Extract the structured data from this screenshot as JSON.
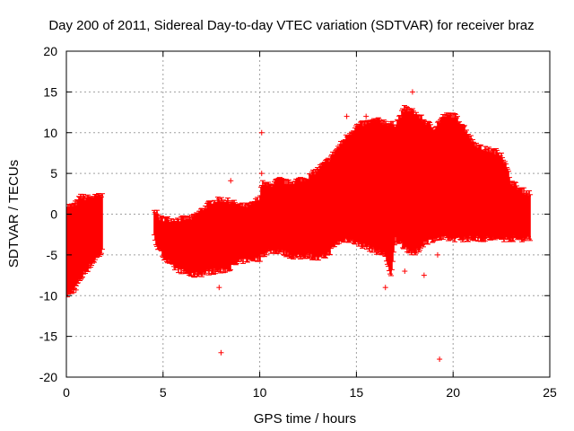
{
  "chart_data": {
    "type": "scatter",
    "title": "Day 200 of 2011, Sidereal Day-to-day VTEC variation (SDTVAR) for receiver braz",
    "xlabel": "GPS time / hours",
    "ylabel": "SDTVAR / TECUs",
    "xlim": [
      0,
      25
    ],
    "ylim": [
      -20,
      20
    ],
    "xticks": [
      0,
      5,
      10,
      15,
      20,
      25
    ],
    "yticks": [
      -20,
      -15,
      -10,
      -5,
      0,
      5,
      10,
      15,
      20
    ],
    "grid": true,
    "marker": "+",
    "color": "#ff0000",
    "series": [
      {
        "name": "SDTVAR",
        "envelope": [
          {
            "x": 0.0,
            "lo": -10.0,
            "hi": 1.0
          },
          {
            "x": 0.3,
            "lo": -9.5,
            "hi": 1.0
          },
          {
            "x": 0.6,
            "lo": -8.5,
            "hi": 1.5
          },
          {
            "x": 0.7,
            "lo": -8.0,
            "hi": 2.2
          },
          {
            "x": 1.0,
            "lo": -7.0,
            "hi": 2.0
          },
          {
            "x": 1.5,
            "lo": -5.5,
            "hi": 2.1
          },
          {
            "x": 1.9,
            "lo": -4.5,
            "hi": 2.3
          },
          {
            "x": 4.5,
            "lo": -2.5,
            "hi": 1.0
          },
          {
            "x": 4.8,
            "lo": -4.5,
            "hi": -0.5
          },
          {
            "x": 5.5,
            "lo": -6.5,
            "hi": -0.7
          },
          {
            "x": 6.5,
            "lo": -7.5,
            "hi": -0.5
          },
          {
            "x": 7.0,
            "lo": -7.3,
            "hi": 0.5
          },
          {
            "x": 7.5,
            "lo": -7.0,
            "hi": 1.5
          },
          {
            "x": 8.0,
            "lo": -7.0,
            "hi": 1.8
          },
          {
            "x": 8.5,
            "lo": -6.5,
            "hi": 1.5
          },
          {
            "x": 9.0,
            "lo": -5.8,
            "hi": 1.0
          },
          {
            "x": 9.5,
            "lo": -5.5,
            "hi": 1.0
          },
          {
            "x": 10.0,
            "lo": -5.5,
            "hi": 2.0
          },
          {
            "x": 10.1,
            "lo": -5.0,
            "hi": 3.8
          },
          {
            "x": 10.5,
            "lo": -4.5,
            "hi": 3.5
          },
          {
            "x": 11.0,
            "lo": -4.5,
            "hi": 4.2
          },
          {
            "x": 11.5,
            "lo": -5.0,
            "hi": 3.8
          },
          {
            "x": 12.0,
            "lo": -5.3,
            "hi": 4.2
          },
          {
            "x": 12.5,
            "lo": -5.0,
            "hi": 4.5
          },
          {
            "x": 13.0,
            "lo": -5.5,
            "hi": 5.5
          },
          {
            "x": 13.5,
            "lo": -5.0,
            "hi": 6.5
          },
          {
            "x": 14.0,
            "lo": -3.5,
            "hi": 8.0
          },
          {
            "x": 14.5,
            "lo": -3.0,
            "hi": 9.5
          },
          {
            "x": 15.0,
            "lo": -3.5,
            "hi": 10.8
          },
          {
            "x": 15.5,
            "lo": -4.0,
            "hi": 11.2
          },
          {
            "x": 16.0,
            "lo": -4.5,
            "hi": 11.5
          },
          {
            "x": 16.5,
            "lo": -5.0,
            "hi": 11.3
          },
          {
            "x": 16.8,
            "lo": -8.0,
            "hi": 11.0
          },
          {
            "x": 17.0,
            "lo": -3.0,
            "hi": 11.0
          },
          {
            "x": 17.5,
            "lo": -4.0,
            "hi": 13.0
          },
          {
            "x": 18.0,
            "lo": -5.0,
            "hi": 12.5
          },
          {
            "x": 18.5,
            "lo": -3.5,
            "hi": 11.5
          },
          {
            "x": 19.0,
            "lo": -3.0,
            "hi": 10.5
          },
          {
            "x": 19.5,
            "lo": -3.0,
            "hi": 12.0
          },
          {
            "x": 20.0,
            "lo": -3.0,
            "hi": 12.2
          },
          {
            "x": 20.5,
            "lo": -3.0,
            "hi": 11.0
          },
          {
            "x": 21.0,
            "lo": -3.0,
            "hi": 9.0
          },
          {
            "x": 21.5,
            "lo": -3.0,
            "hi": 8.0
          },
          {
            "x": 22.0,
            "lo": -3.0,
            "hi": 7.8
          },
          {
            "x": 22.5,
            "lo": -3.0,
            "hi": 7.5
          },
          {
            "x": 23.0,
            "lo": -3.0,
            "hi": 4.0
          },
          {
            "x": 23.5,
            "lo": -3.0,
            "hi": 3.0
          },
          {
            "x": 24.0,
            "lo": -3.0,
            "hi": 2.5
          }
        ],
        "segments": [
          {
            "start": 0.0,
            "end": 1.9
          },
          {
            "start": 4.5,
            "end": 24.0
          }
        ],
        "outliers": [
          {
            "x": 8.0,
            "y": -17.0
          },
          {
            "x": 8.5,
            "y": 4.1
          },
          {
            "x": 10.1,
            "y": 10.0
          },
          {
            "x": 10.1,
            "y": 5.0
          },
          {
            "x": 14.5,
            "y": 12.0
          },
          {
            "x": 15.5,
            "y": 12.0
          },
          {
            "x": 17.9,
            "y": 15.0
          },
          {
            "x": 19.3,
            "y": -17.8
          },
          {
            "x": 18.5,
            "y": -7.5
          },
          {
            "x": 17.5,
            "y": -7.0
          },
          {
            "x": 16.5,
            "y": -9.0
          },
          {
            "x": 19.2,
            "y": -5.0
          },
          {
            "x": 7.9,
            "y": -9.0
          },
          {
            "x": 0.5,
            "y": -9.3
          }
        ]
      }
    ]
  }
}
